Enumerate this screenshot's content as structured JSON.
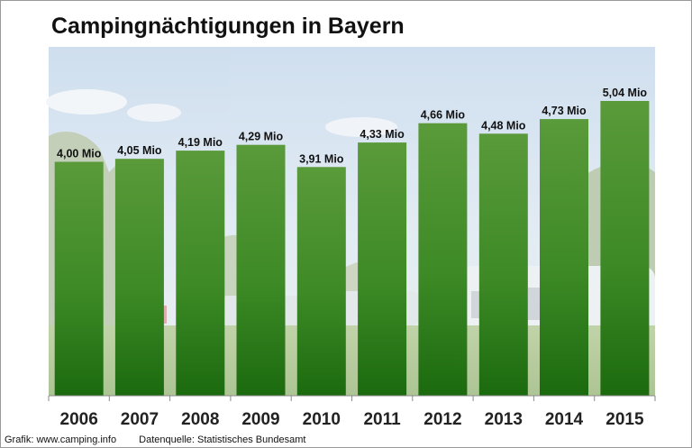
{
  "chart_data": {
    "type": "bar",
    "title": "Campingnächtigungen in Bayern",
    "categories": [
      "2006",
      "2007",
      "2008",
      "2009",
      "2010",
      "2011",
      "2012",
      "2013",
      "2014",
      "2015"
    ],
    "values": [
      4.0,
      4.05,
      4.19,
      4.29,
      3.91,
      4.33,
      4.66,
      4.48,
      4.73,
      5.04
    ],
    "data_labels": [
      "4,00 Mio",
      "4,05 Mio",
      "4,19 Mio",
      "4,29 Mio",
      "3,91 Mio",
      "4,33 Mio",
      "4,66 Mio",
      "4,48 Mio",
      "4,73 Mio",
      "5,04 Mio"
    ],
    "xlabel": "",
    "ylabel": "",
    "ylim": [
      0,
      5.04
    ],
    "grid": false,
    "legend": "none",
    "colors": {
      "bar_top": "#5a9a3a",
      "bar_mid": "#3d8a26",
      "bar_bottom": "#1b6a0e"
    }
  },
  "footer": {
    "source_graphic": "Grafik: www.camping.info",
    "source_data": "Datenquelle:  Statistisches Bundesamt"
  }
}
